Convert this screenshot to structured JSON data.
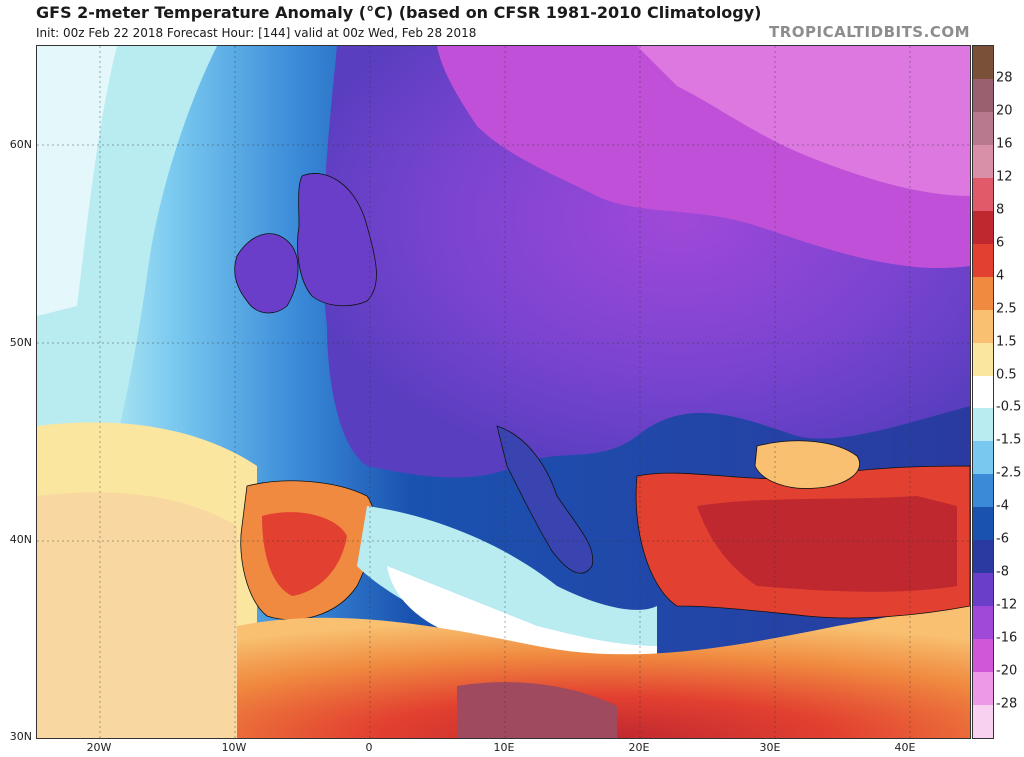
{
  "header": {
    "title": "GFS 2-meter Temperature Anomaly (°C) (based on CFSR 1981-2010 Climatology)",
    "subtitle": "Init: 00z Feb 22 2018   Forecast Hour: [144]   valid at 00z Wed, Feb 28 2018",
    "brand": "TROPICALTIDBITS.COM"
  },
  "map": {
    "lat_labels": [
      "60N",
      "50N",
      "40N",
      "30N"
    ],
    "lon_labels": [
      "20W",
      "10W",
      "0",
      "10E",
      "20E",
      "30E",
      "40E"
    ]
  },
  "colorbar": {
    "labels": [
      "28",
      "20",
      "16",
      "12",
      "8",
      "6",
      "4",
      "2.5",
      "1.5",
      "0.5",
      "-0.5",
      "-1.5",
      "-2.5",
      "-4",
      "-6",
      "-8",
      "-12",
      "-16",
      "-20",
      "-28"
    ],
    "colors": [
      "#7a5038",
      "#9a6070",
      "#b8788e",
      "#d890a8",
      "#e05a6a",
      "#c02830",
      "#e24030",
      "#f08a40",
      "#f8c070",
      "#fbe6a0",
      "#ffffff",
      "#b8ecf0",
      "#78c8f0",
      "#3a8ad8",
      "#1a52b0",
      "#2a3aa0",
      "#6a3ec8",
      "#a048d8",
      "#d058d8",
      "#ee98e8",
      "#f8d0f0"
    ]
  }
}
